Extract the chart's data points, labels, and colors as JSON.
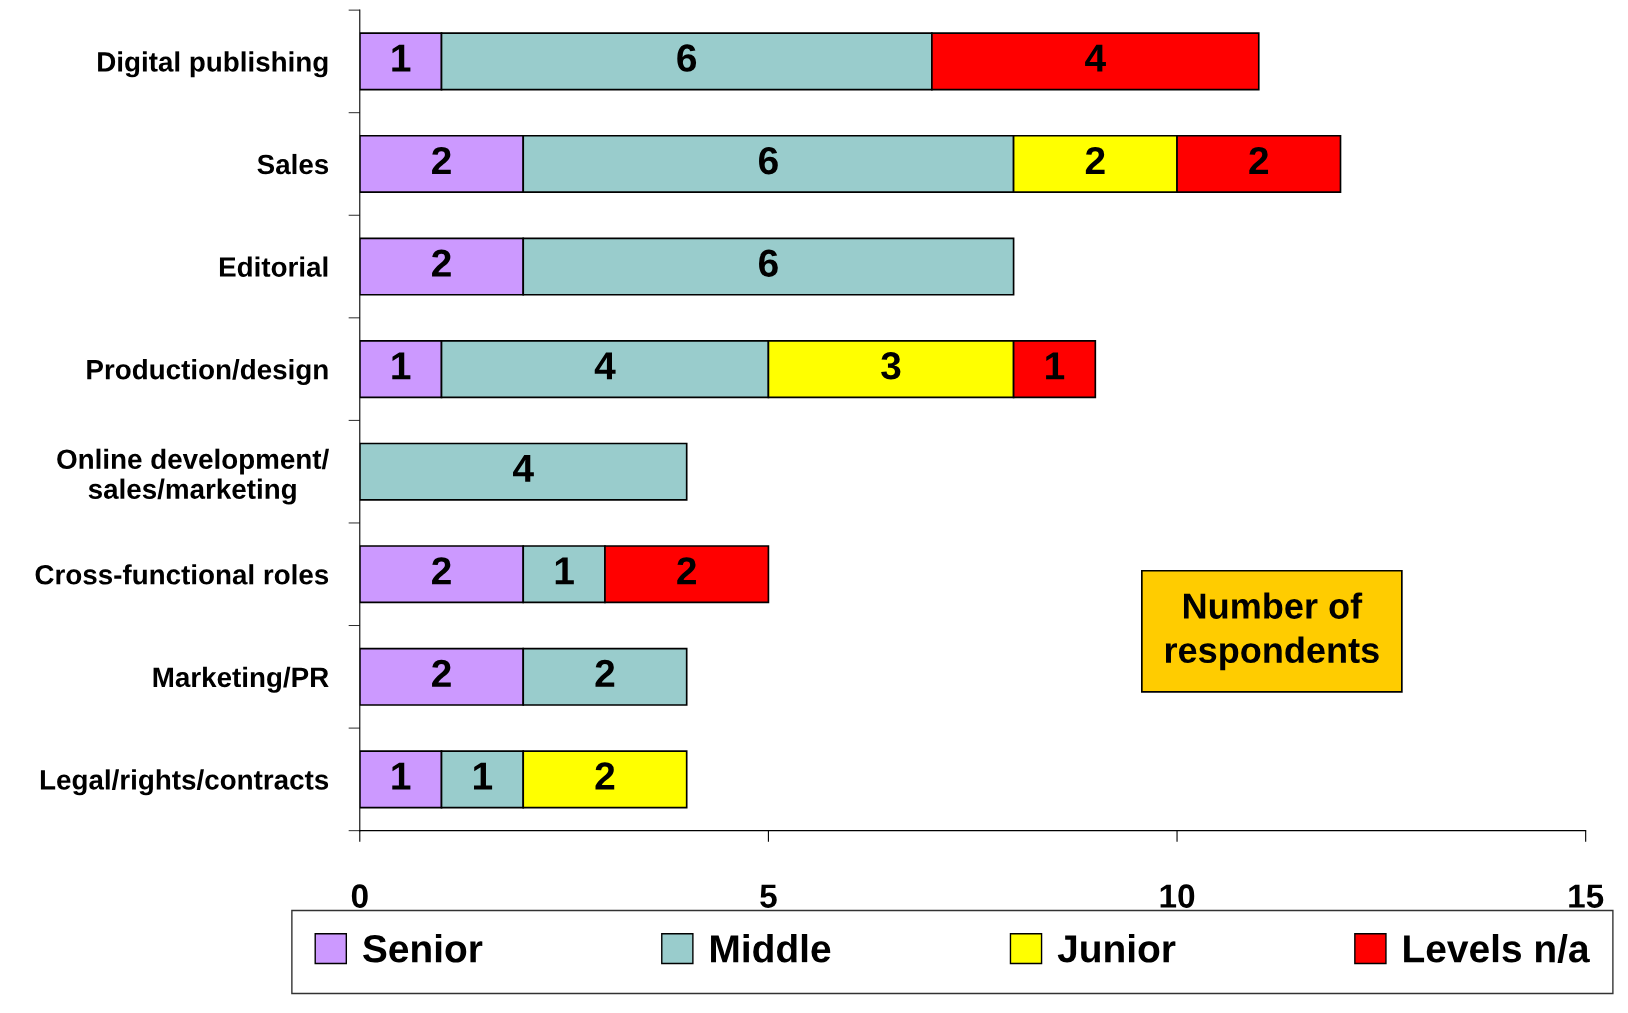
{
  "chart_data": {
    "type": "bar",
    "orientation": "horizontal",
    "stacked": true,
    "categories": [
      "Digital publishing",
      "Sales",
      "Editorial",
      "Production/design",
      "Online development/\nsales/marketing",
      "Cross-functional roles",
      "Marketing/PR",
      "Legal/rights/contracts"
    ],
    "series": [
      {
        "name": "Senior",
        "color": "#cc99ff",
        "values": [
          1,
          2,
          2,
          1,
          null,
          2,
          2,
          1
        ]
      },
      {
        "name": "Middle",
        "color": "#99cccc",
        "values": [
          6,
          6,
          6,
          4,
          4,
          1,
          2,
          1
        ]
      },
      {
        "name": "Junior",
        "color": "#ffff00",
        "values": [
          null,
          2,
          null,
          3,
          null,
          null,
          null,
          2
        ]
      },
      {
        "name": "Levels n/a",
        "color": "#ff0000",
        "values": [
          4,
          2,
          null,
          1,
          null,
          2,
          null,
          null
        ]
      }
    ],
    "xlim": [
      0,
      15
    ],
    "xticks": [
      0,
      5,
      10,
      15
    ],
    "data_labels": true,
    "grid": false,
    "legend": "bottom",
    "annotations": [
      "Number of\nrespondents"
    ]
  }
}
